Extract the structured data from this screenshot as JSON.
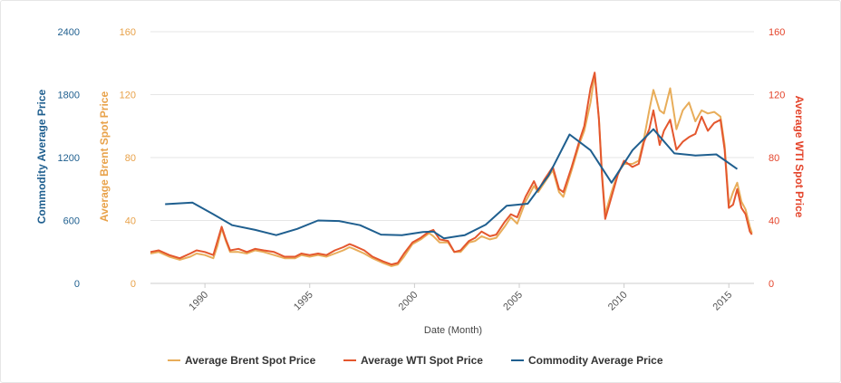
{
  "chart_data": {
    "type": "line",
    "xlabel": "Date (Month)",
    "x_ticks": [
      "1990",
      "1995",
      "2000",
      "2005",
      "2010",
      "2015"
    ],
    "xlim": [
      1987.4,
      2016.2
    ],
    "axes": {
      "left_outer": {
        "label": "Commodity Average Price",
        "color": "#1f5f8f",
        "ticks": [
          "0",
          "600",
          "1200",
          "1800",
          "2400"
        ],
        "ylim": [
          0,
          2400
        ]
      },
      "left_inner": {
        "label": "Average Brent Spot Price",
        "color": "#e8a24a",
        "ticks": [
          "0",
          "40",
          "80",
          "120",
          "160"
        ],
        "ylim": [
          0,
          160
        ]
      },
      "right": {
        "label": "Average WTI Spot Price",
        "color": "#e4452c",
        "ticks": [
          "0",
          "40",
          "80",
          "120",
          "160"
        ],
        "ylim": [
          0,
          160
        ]
      }
    },
    "grid": true,
    "legend_position": "bottom-center",
    "series": [
      {
        "name": "Average Brent Spot Price",
        "axis": "left_inner",
        "color": "#e8ad5a",
        "points": [
          [
            1987.4,
            19
          ],
          [
            1987.8,
            20
          ],
          [
            1988.3,
            17
          ],
          [
            1988.8,
            15
          ],
          [
            1989.3,
            17
          ],
          [
            1989.6,
            19
          ],
          [
            1990.0,
            18
          ],
          [
            1990.4,
            16
          ],
          [
            1990.6,
            24
          ],
          [
            1990.8,
            35
          ],
          [
            1991.0,
            27
          ],
          [
            1991.2,
            20
          ],
          [
            1991.6,
            20
          ],
          [
            1992.0,
            19
          ],
          [
            1992.4,
            21
          ],
          [
            1992.8,
            20
          ],
          [
            1993.3,
            18
          ],
          [
            1993.8,
            16
          ],
          [
            1994.3,
            16
          ],
          [
            1994.6,
            18
          ],
          [
            1995.0,
            17
          ],
          [
            1995.4,
            18
          ],
          [
            1995.8,
            17
          ],
          [
            1996.2,
            19
          ],
          [
            1996.6,
            21
          ],
          [
            1996.9,
            23
          ],
          [
            1997.1,
            22
          ],
          [
            1997.6,
            19
          ],
          [
            1998.0,
            16
          ],
          [
            1998.5,
            13
          ],
          [
            1998.9,
            11
          ],
          [
            1999.2,
            12
          ],
          [
            1999.5,
            17
          ],
          [
            1999.9,
            25
          ],
          [
            2000.3,
            28
          ],
          [
            2000.7,
            32
          ],
          [
            2000.9,
            30
          ],
          [
            2001.2,
            26
          ],
          [
            2001.6,
            26
          ],
          [
            2001.9,
            20
          ],
          [
            2002.2,
            20
          ],
          [
            2002.6,
            26
          ],
          [
            2002.9,
            27
          ],
          [
            2003.2,
            30
          ],
          [
            2003.6,
            28
          ],
          [
            2003.9,
            29
          ],
          [
            2004.3,
            36
          ],
          [
            2004.6,
            42
          ],
          [
            2004.9,
            38
          ],
          [
            2005.3,
            52
          ],
          [
            2005.7,
            62
          ],
          [
            2005.9,
            58
          ],
          [
            2006.2,
            64
          ],
          [
            2006.6,
            72
          ],
          [
            2006.9,
            58
          ],
          [
            2007.1,
            55
          ],
          [
            2007.5,
            72
          ],
          [
            2007.9,
            90
          ],
          [
            2008.1,
            97
          ],
          [
            2008.4,
            115
          ],
          [
            2008.6,
            133
          ],
          [
            2008.8,
            105
          ],
          [
            2008.95,
            70
          ],
          [
            2009.1,
            44
          ],
          [
            2009.4,
            58
          ],
          [
            2009.7,
            70
          ],
          [
            2010.0,
            76
          ],
          [
            2010.4,
            76
          ],
          [
            2010.7,
            78
          ],
          [
            2010.95,
            92
          ],
          [
            2011.2,
            110
          ],
          [
            2011.4,
            123
          ],
          [
            2011.7,
            110
          ],
          [
            2011.9,
            108
          ],
          [
            2012.2,
            124
          ],
          [
            2012.5,
            98
          ],
          [
            2012.8,
            110
          ],
          [
            2013.1,
            115
          ],
          [
            2013.4,
            103
          ],
          [
            2013.7,
            110
          ],
          [
            2014.0,
            108
          ],
          [
            2014.3,
            109
          ],
          [
            2014.6,
            106
          ],
          [
            2014.8,
            88
          ],
          [
            2015.0,
            50
          ],
          [
            2015.2,
            58
          ],
          [
            2015.4,
            64
          ],
          [
            2015.6,
            52
          ],
          [
            2015.8,
            47
          ],
          [
            2016.0,
            36
          ],
          [
            2016.1,
            32
          ]
        ]
      },
      {
        "name": "Average WTI Spot Price",
        "axis": "right",
        "color": "#e4572e",
        "points": [
          [
            1987.4,
            20
          ],
          [
            1987.8,
            21
          ],
          [
            1988.3,
            18
          ],
          [
            1988.8,
            16
          ],
          [
            1989.3,
            19
          ],
          [
            1989.6,
            21
          ],
          [
            1990.0,
            20
          ],
          [
            1990.4,
            18
          ],
          [
            1990.6,
            27
          ],
          [
            1990.8,
            36
          ],
          [
            1991.0,
            28
          ],
          [
            1991.2,
            21
          ],
          [
            1991.6,
            22
          ],
          [
            1992.0,
            20
          ],
          [
            1992.4,
            22
          ],
          [
            1992.8,
            21
          ],
          [
            1993.3,
            20
          ],
          [
            1993.8,
            17
          ],
          [
            1994.3,
            17
          ],
          [
            1994.6,
            19
          ],
          [
            1995.0,
            18
          ],
          [
            1995.4,
            19
          ],
          [
            1995.8,
            18
          ],
          [
            1996.2,
            21
          ],
          [
            1996.6,
            23
          ],
          [
            1996.9,
            25
          ],
          [
            1997.1,
            24
          ],
          [
            1997.6,
            21
          ],
          [
            1998.0,
            17
          ],
          [
            1998.5,
            14
          ],
          [
            1998.9,
            12
          ],
          [
            1999.2,
            13
          ],
          [
            1999.5,
            19
          ],
          [
            1999.9,
            26
          ],
          [
            2000.3,
            29
          ],
          [
            2000.7,
            33
          ],
          [
            2000.9,
            34
          ],
          [
            2001.2,
            28
          ],
          [
            2001.6,
            27
          ],
          [
            2001.9,
            20
          ],
          [
            2002.2,
            21
          ],
          [
            2002.6,
            27
          ],
          [
            2002.9,
            29
          ],
          [
            2003.2,
            33
          ],
          [
            2003.6,
            30
          ],
          [
            2003.9,
            31
          ],
          [
            2004.3,
            39
          ],
          [
            2004.6,
            44
          ],
          [
            2004.9,
            42
          ],
          [
            2005.3,
            55
          ],
          [
            2005.7,
            65
          ],
          [
            2005.9,
            59
          ],
          [
            2006.2,
            66
          ],
          [
            2006.6,
            74
          ],
          [
            2006.9,
            60
          ],
          [
            2007.1,
            58
          ],
          [
            2007.5,
            74
          ],
          [
            2007.9,
            92
          ],
          [
            2008.1,
            100
          ],
          [
            2008.4,
            124
          ],
          [
            2008.6,
            134
          ],
          [
            2008.8,
            104
          ],
          [
            2008.95,
            68
          ],
          [
            2009.1,
            41
          ],
          [
            2009.4,
            55
          ],
          [
            2009.7,
            69
          ],
          [
            2010.0,
            78
          ],
          [
            2010.4,
            74
          ],
          [
            2010.7,
            76
          ],
          [
            2010.95,
            90
          ],
          [
            2011.2,
            98
          ],
          [
            2011.4,
            110
          ],
          [
            2011.7,
            88
          ],
          [
            2011.9,
            97
          ],
          [
            2012.2,
            104
          ],
          [
            2012.5,
            85
          ],
          [
            2012.8,
            90
          ],
          [
            2013.1,
            93
          ],
          [
            2013.4,
            95
          ],
          [
            2013.7,
            106
          ],
          [
            2014.0,
            97
          ],
          [
            2014.3,
            102
          ],
          [
            2014.6,
            104
          ],
          [
            2014.8,
            85
          ],
          [
            2015.0,
            48
          ],
          [
            2015.2,
            50
          ],
          [
            2015.4,
            60
          ],
          [
            2015.6,
            48
          ],
          [
            2015.8,
            44
          ],
          [
            2016.0,
            33
          ],
          [
            2016.1,
            31
          ]
        ]
      },
      {
        "name": "Commodity Average Price",
        "axis": "left_outer",
        "color": "#1f5f8f",
        "points": [
          [
            1988.1,
            755
          ],
          [
            1989.4,
            770
          ],
          [
            1990.4,
            660
          ],
          [
            1991.3,
            555
          ],
          [
            1992.4,
            510
          ],
          [
            1993.4,
            460
          ],
          [
            1994.4,
            520
          ],
          [
            1995.4,
            600
          ],
          [
            1996.4,
            595
          ],
          [
            1997.4,
            555
          ],
          [
            1998.4,
            465
          ],
          [
            1999.4,
            460
          ],
          [
            2000.4,
            490
          ],
          [
            2000.9,
            495
          ],
          [
            2001.4,
            430
          ],
          [
            2002.4,
            460
          ],
          [
            2003.4,
            560
          ],
          [
            2004.4,
            740
          ],
          [
            2005.4,
            760
          ],
          [
            2006.4,
            1030
          ],
          [
            2007.4,
            1420
          ],
          [
            2008.4,
            1270
          ],
          [
            2009.4,
            960
          ],
          [
            2010.4,
            1270
          ],
          [
            2011.4,
            1470
          ],
          [
            2012.4,
            1240
          ],
          [
            2013.4,
            1220
          ],
          [
            2014.4,
            1230
          ],
          [
            2015.4,
            1090
          ]
        ]
      }
    ]
  }
}
